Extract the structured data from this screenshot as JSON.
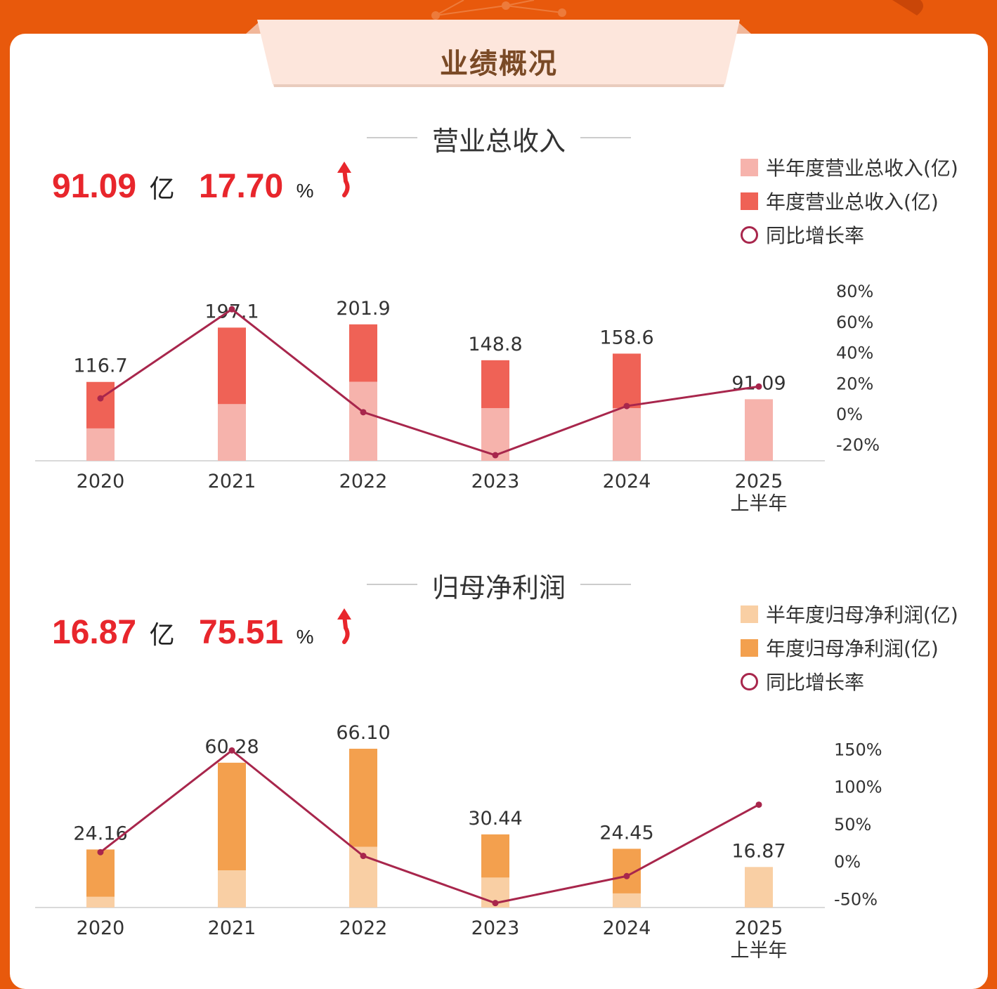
{
  "header": {
    "title": "业绩概况"
  },
  "colors": {
    "background": "#e8590c",
    "kpi": "#e8262c",
    "line": "#a8264c"
  },
  "revenue": {
    "title": "营业总收入",
    "kpi_value": "91.09",
    "kpi_unit": "亿",
    "kpi_growth": "17.70",
    "kpi_pct": "%",
    "kpi_icon": "up-arrow-icon",
    "legend": [
      {
        "label": "半年度营业总收入(亿)",
        "color": "#f6b3ac"
      },
      {
        "label": "年度营业总收入(亿)",
        "color": "#ef6256"
      },
      {
        "label": "同比增长率",
        "color": "#a8264c"
      }
    ]
  },
  "profit": {
    "title": "归母净利润",
    "kpi_value": "16.87",
    "kpi_unit": "亿",
    "kpi_growth": "75.51",
    "kpi_pct": "%",
    "kpi_icon": "up-arrow-icon",
    "legend": [
      {
        "label": "半年度归母净利润(亿)",
        "color": "#f9cfa4"
      },
      {
        "label": "年度归母净利润(亿)",
        "color": "#f3a04e"
      },
      {
        "label": "同比增长率",
        "color": "#a8264c"
      }
    ]
  },
  "chart_data": [
    {
      "type": "bar",
      "categories": [
        "2020",
        "2021",
        "2022",
        "2023",
        "2024",
        "2025\n上半年"
      ],
      "series": [
        {
          "name": "半年度营业总收入(亿)",
          "values": [
            48,
            84,
            117,
            78,
            78,
            91.09
          ]
        },
        {
          "name": "年度营业总收入(亿)",
          "values": [
            116.7,
            197.1,
            201.9,
            148.8,
            158.6,
            null
          ]
        },
        {
          "name": "同比增长率",
          "axis": "right",
          "values": [
            10,
            68,
            1,
            -27,
            5,
            17.7
          ]
        }
      ],
      "value_labels": [
        "116.7",
        "197.1",
        "201.9",
        "148.8",
        "158.6",
        "91.09"
      ],
      "y2ticks": [
        "80%",
        "60%",
        "40%",
        "20%",
        "0%",
        "-20%"
      ],
      "y2lim": [
        -20,
        80
      ]
    },
    {
      "type": "bar",
      "categories": [
        "2020",
        "2021",
        "2022",
        "2023",
        "2024",
        "2025\n上半年"
      ],
      "series": [
        {
          "name": "半年度归母净利润(亿)",
          "values": [
            4.5,
            15.5,
            25.3,
            12.5,
            5.9,
            16.87
          ]
        },
        {
          "name": "年度归母净利润(亿)",
          "values": [
            24.16,
            60.28,
            66.1,
            30.44,
            24.45,
            null
          ]
        },
        {
          "name": "同比增长率",
          "axis": "right",
          "values": [
            12,
            148,
            7,
            -56,
            -20,
            75.51
          ]
        }
      ],
      "value_labels": [
        "24.16",
        "60.28",
        "66.10",
        "30.44",
        "24.45",
        "16.87"
      ],
      "y2ticks": [
        "150%",
        "100%",
        "50%",
        "0%",
        "-50%"
      ],
      "y2lim": [
        -50,
        150
      ]
    }
  ]
}
